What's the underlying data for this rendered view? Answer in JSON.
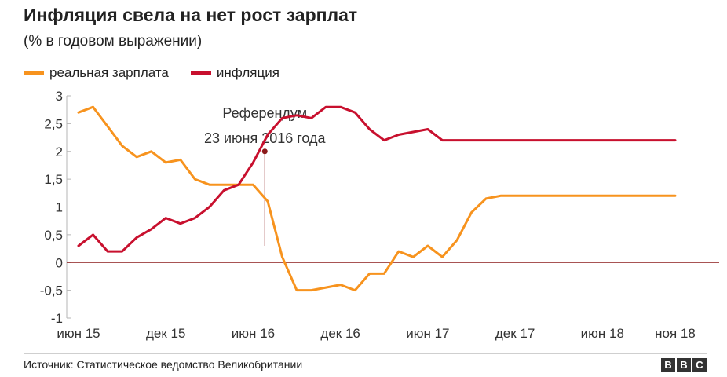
{
  "title": "Инфляция свела на нет рост зарплат",
  "subtitle": "(% в годовом выражении)",
  "footer": {
    "source": "Источник: Статистическое ведомство Великобритании",
    "logo": [
      "B",
      "B",
      "C"
    ]
  },
  "colors": {
    "real_wage": "#f7931e",
    "inflation": "#c8102e",
    "axis": "#b5b5b5",
    "zero_line": "#8b1a1a",
    "annotation": "#8b1a1a"
  },
  "chart_data": {
    "type": "line",
    "title": "Инфляция свела на нет рост зарплат",
    "subtitle": "(% в годовом выражении)",
    "xlabel": "",
    "ylabel": "",
    "ylim": [
      -1,
      3
    ],
    "y_ticks": [
      {
        "v": 3,
        "label": "3"
      },
      {
        "v": 2.5,
        "label": "2,5"
      },
      {
        "v": 2,
        "label": "2"
      },
      {
        "v": 1.5,
        "label": "1,5"
      },
      {
        "v": 1,
        "label": "1"
      },
      {
        "v": 0.5,
        "label": "0,5"
      },
      {
        "v": 0,
        "label": "0"
      },
      {
        "v": -0.5,
        "label": "-0,5"
      },
      {
        "v": -1,
        "label": "-1"
      }
    ],
    "x": [
      "2015-06",
      "2015-07",
      "2015-08",
      "2015-09",
      "2015-10",
      "2015-11",
      "2015-12",
      "2016-01",
      "2016-02",
      "2016-03",
      "2016-04",
      "2016-05",
      "2016-06",
      "2016-07",
      "2016-08",
      "2016-09",
      "2016-10",
      "2016-11",
      "2016-12",
      "2017-01",
      "2017-02",
      "2017-03",
      "2017-04",
      "2017-05",
      "2017-06",
      "2017-07",
      "2017-08",
      "2017-09",
      "2017-10",
      "2017-11",
      "2017-12",
      "2018-01",
      "2018-02",
      "2018-03",
      "2018-04",
      "2018-05",
      "2018-06",
      "2018-07",
      "2018-08",
      "2018-09",
      "2018-10",
      "2018-11"
    ],
    "x_ticks": [
      {
        "index": 0,
        "label": "июн 15"
      },
      {
        "index": 6,
        "label": "дек 15"
      },
      {
        "index": 12,
        "label": "июн 16"
      },
      {
        "index": 18,
        "label": "дек 16"
      },
      {
        "index": 24,
        "label": "июн 17"
      },
      {
        "index": 30,
        "label": "дек 17"
      },
      {
        "index": 36,
        "label": "июн 18"
      },
      {
        "index": 41,
        "label": "ноя 18"
      }
    ],
    "legend_position": "top-left",
    "grid": false,
    "series": [
      {
        "name": "реальная зарплата",
        "color": "#f7931e",
        "values": [
          2.7,
          2.8,
          2.45,
          2.1,
          1.9,
          2.0,
          1.8,
          1.85,
          1.5,
          1.4,
          1.4,
          1.4,
          1.4,
          1.1,
          0.1,
          -0.5,
          -0.5,
          -0.45,
          -0.4,
          -0.5,
          -0.2,
          -0.2,
          0.2,
          0.1,
          0.3,
          0.1,
          0.4,
          0.9,
          1.15,
          1.2,
          1.2,
          1.2,
          1.2,
          1.2,
          1.2,
          1.2,
          1.2,
          1.2,
          1.2,
          1.2,
          1.2,
          1.2
        ]
      },
      {
        "name": "инфляция",
        "color": "#c8102e",
        "values": [
          0.3,
          0.5,
          0.2,
          0.2,
          0.45,
          0.6,
          0.8,
          0.7,
          0.8,
          1.0,
          1.3,
          1.4,
          1.8,
          2.3,
          2.6,
          2.65,
          2.6,
          2.8,
          2.8,
          2.7,
          2.4,
          2.2,
          2.3,
          2.35,
          2.4,
          2.2,
          2.2,
          2.2,
          2.2,
          2.2,
          2.2,
          2.2,
          2.2,
          2.2,
          2.2,
          2.2,
          2.2,
          2.2,
          2.2,
          2.2,
          2.2,
          2.2
        ]
      }
    ],
    "annotation": {
      "index": 12.8,
      "value": 2.0,
      "line1": "Референдум",
      "line2": "23 июня 2016 года"
    }
  }
}
